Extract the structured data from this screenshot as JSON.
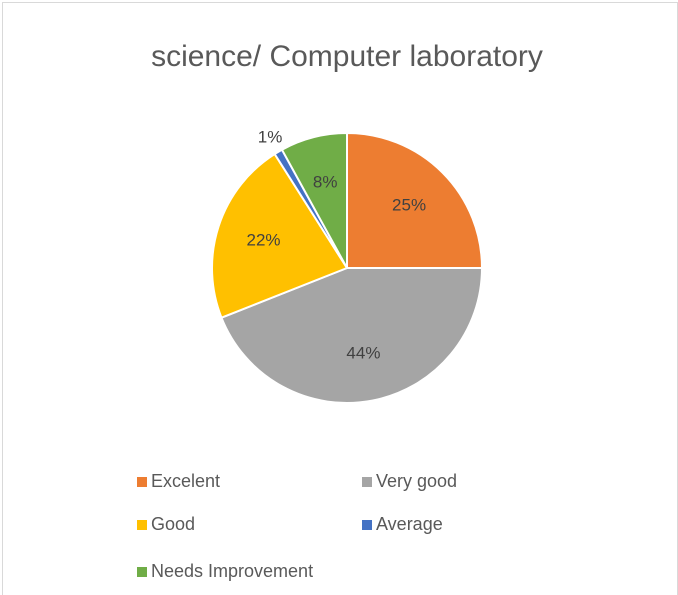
{
  "chart_data": {
    "type": "pie",
    "title": "science/ Computer laboratory",
    "categories": [
      "Excelent",
      "Very good",
      "Good",
      "Average",
      "Needs Improvement"
    ],
    "values": [
      25,
      44,
      22,
      1,
      8
    ],
    "value_labels": [
      "25%",
      "44%",
      "22%",
      "1%",
      "8%"
    ],
    "colors": [
      "#ed7d31",
      "#a5a5a5",
      "#ffc000",
      "#4472c4",
      "#70ad47"
    ],
    "legend": "bottom"
  }
}
